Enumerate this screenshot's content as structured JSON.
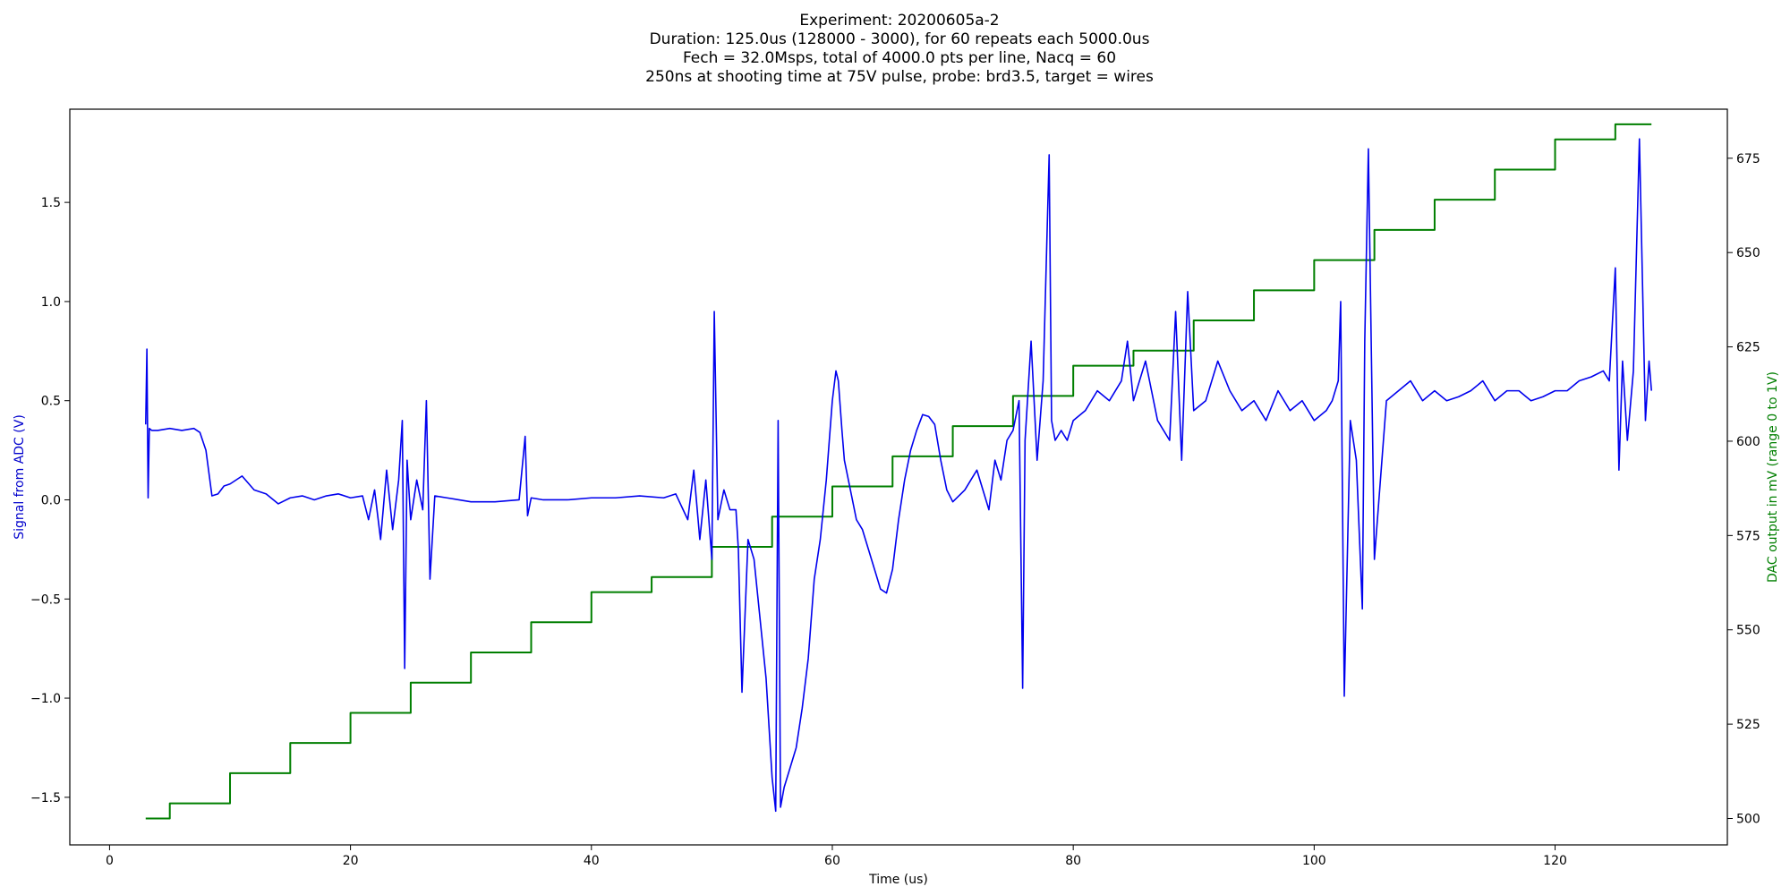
{
  "chart_data": {
    "type": "line",
    "title": [
      "Experiment: 20200605a-2",
      "Duration: 125.0us (128000 - 3000), for 60 repeats each 5000.0us",
      "Fech = 32.0Msps, total of 4000.0 pts per line, Nacq = 60",
      "250ns at shooting time at 75V pulse, probe: brd3.5, target = wires"
    ],
    "xlabel": "Time (us)",
    "ylabel_left": "Signal from ADC (V)",
    "ylabel_right": "DAC output in mV (range 0 to 1V)",
    "xlim": [
      -3.3,
      134.3
    ],
    "ylim_left": [
      -1.74,
      1.97
    ],
    "ylim_right": [
      493,
      688
    ],
    "x_ticks": [
      0,
      20,
      40,
      60,
      80,
      100,
      120
    ],
    "y_ticks_left": [
      -1.5,
      -1.0,
      -0.5,
      0.0,
      0.5,
      1.0,
      1.5
    ],
    "y_ticks_left_labels": [
      "−1.5",
      "−1.0",
      "−0.5",
      "0.0",
      "0.5",
      "1.0",
      "1.5"
    ],
    "y_ticks_right": [
      500,
      525,
      550,
      575,
      600,
      625,
      650,
      675
    ],
    "grid": false,
    "legend": "none",
    "colors": {
      "signal": "#0000ee",
      "dac": "#007f00",
      "left_label": "#0000cc",
      "right_label": "#007f00"
    },
    "series": [
      {
        "axis": "left",
        "color": "#0000ee",
        "x": [
          3.0,
          3.1,
          3.2,
          3.3,
          3.5,
          4.0,
          5.0,
          6.0,
          7.0,
          7.5,
          8.0,
          8.5,
          9.0,
          9.5,
          10.0,
          11.0,
          12.0,
          13.0,
          14.0,
          15.0,
          16.0,
          17.0,
          18.0,
          19.0,
          20.0,
          21.0,
          21.5,
          22.0,
          22.5,
          23.0,
          23.5,
          24.0,
          24.3,
          24.5,
          24.7,
          25.0,
          25.5,
          26.0,
          26.3,
          26.6,
          27.0,
          28.0,
          30.0,
          32.0,
          34.0,
          34.5,
          34.7,
          35.0,
          36.0,
          38.0,
          40.0,
          42.0,
          44.0,
          46.0,
          47.0,
          48.0,
          48.5,
          49.0,
          49.5,
          50.0,
          50.2,
          50.5,
          51.0,
          51.5,
          52.0,
          52.2,
          52.5,
          53.0,
          53.5,
          54.0,
          54.5,
          55.0,
          55.3,
          55.5,
          55.7,
          56.0,
          56.5,
          57.0,
          57.5,
          58.0,
          58.5,
          59.0,
          59.5,
          60.0,
          60.3,
          60.5,
          60.8,
          61.0,
          61.5,
          62.0,
          62.5,
          63.0,
          63.5,
          64.0,
          64.5,
          65.0,
          65.5,
          66.0,
          66.5,
          67.0,
          67.5,
          68.0,
          68.5,
          69.0,
          69.5,
          70.0,
          70.5,
          71.0,
          71.5,
          72.0,
          72.5,
          73.0,
          73.5,
          74.0,
          74.5,
          75.0,
          75.5,
          75.8,
          76.0,
          76.5,
          77.0,
          77.5,
          78.0,
          78.2,
          78.5,
          79.0,
          79.5,
          80.0,
          81.0,
          82.0,
          83.0,
          84.0,
          84.5,
          85.0,
          86.0,
          87.0,
          88.0,
          88.5,
          89.0,
          89.5,
          90.0,
          91.0,
          92.0,
          93.0,
          94.0,
          95.0,
          96.0,
          97.0,
          98.0,
          99.0,
          100.0,
          101.0,
          101.5,
          102.0,
          102.2,
          102.5,
          103.0,
          103.5,
          104.0,
          104.2,
          104.5,
          105.0,
          106.0,
          107.0,
          108.0,
          109.0,
          110.0,
          111.0,
          112.0,
          113.0,
          114.0,
          115.0,
          116.0,
          117.0,
          118.0,
          119.0,
          120.0,
          121.0,
          122.0,
          123.0,
          124.0,
          124.5,
          125.0,
          125.3,
          125.6,
          126.0,
          126.5,
          127.0,
          127.5,
          127.8,
          128.0
        ],
        "y": [
          0.38,
          0.76,
          0.01,
          0.36,
          0.35,
          0.35,
          0.36,
          0.35,
          0.36,
          0.34,
          0.25,
          0.02,
          0.03,
          0.07,
          0.08,
          0.12,
          0.05,
          0.03,
          -0.02,
          0.01,
          0.02,
          0.0,
          0.02,
          0.03,
          0.01,
          0.02,
          -0.1,
          0.05,
          -0.2,
          0.15,
          -0.15,
          0.1,
          0.4,
          -0.85,
          0.2,
          -0.1,
          0.1,
          -0.05,
          0.5,
          -0.4,
          0.02,
          0.01,
          -0.01,
          -0.01,
          0.0,
          0.32,
          -0.08,
          0.01,
          0.0,
          0.0,
          0.01,
          0.01,
          0.02,
          0.01,
          0.03,
          -0.1,
          0.15,
          -0.2,
          0.1,
          -0.3,
          0.95,
          -0.1,
          0.05,
          -0.05,
          -0.05,
          -0.25,
          -0.97,
          -0.2,
          -0.3,
          -0.6,
          -0.9,
          -1.4,
          -1.57,
          0.4,
          -1.55,
          -1.45,
          -1.35,
          -1.25,
          -1.05,
          -0.8,
          -0.4,
          -0.2,
          0.1,
          0.5,
          0.65,
          0.6,
          0.35,
          0.2,
          0.05,
          -0.1,
          -0.15,
          -0.25,
          -0.35,
          -0.45,
          -0.47,
          -0.35,
          -0.1,
          0.1,
          0.25,
          0.35,
          0.43,
          0.42,
          0.38,
          0.2,
          0.05,
          -0.01,
          0.02,
          0.05,
          0.1,
          0.15,
          0.05,
          -0.05,
          0.2,
          0.1,
          0.3,
          0.35,
          0.5,
          -0.95,
          0.3,
          0.8,
          0.2,
          0.6,
          1.74,
          0.4,
          0.3,
          0.35,
          0.3,
          0.4,
          0.45,
          0.55,
          0.5,
          0.6,
          0.8,
          0.5,
          0.7,
          0.4,
          0.3,
          0.95,
          0.2,
          1.05,
          0.45,
          0.5,
          0.7,
          0.55,
          0.45,
          0.5,
          0.4,
          0.55,
          0.45,
          0.5,
          0.4,
          0.45,
          0.5,
          0.6,
          1.0,
          -0.99,
          0.4,
          0.2,
          -0.55,
          0.8,
          1.77,
          -0.3,
          0.5,
          0.55,
          0.6,
          0.5,
          0.55,
          0.5,
          0.52,
          0.55,
          0.6,
          0.5,
          0.55,
          0.55,
          0.5,
          0.52,
          0.55,
          0.55,
          0.6,
          0.62,
          0.65,
          0.6,
          1.17,
          0.15,
          0.7,
          0.3,
          0.65,
          1.82,
          0.4,
          0.7,
          0.55
        ]
      },
      {
        "axis": "right",
        "color": "#007f00",
        "step": true,
        "x": [
          3,
          5,
          10,
          15,
          20,
          25,
          30,
          35,
          40,
          45,
          50,
          55,
          60,
          65,
          70,
          75,
          80,
          85,
          90,
          95,
          100,
          105,
          110,
          115,
          120,
          125,
          128
        ],
        "y": [
          500,
          504,
          512,
          520,
          528,
          536,
          544,
          552,
          560,
          564,
          572,
          580,
          588,
          596,
          604,
          612,
          620,
          624,
          632,
          640,
          648,
          656,
          664,
          672,
          680,
          684,
          684
        ]
      }
    ]
  }
}
